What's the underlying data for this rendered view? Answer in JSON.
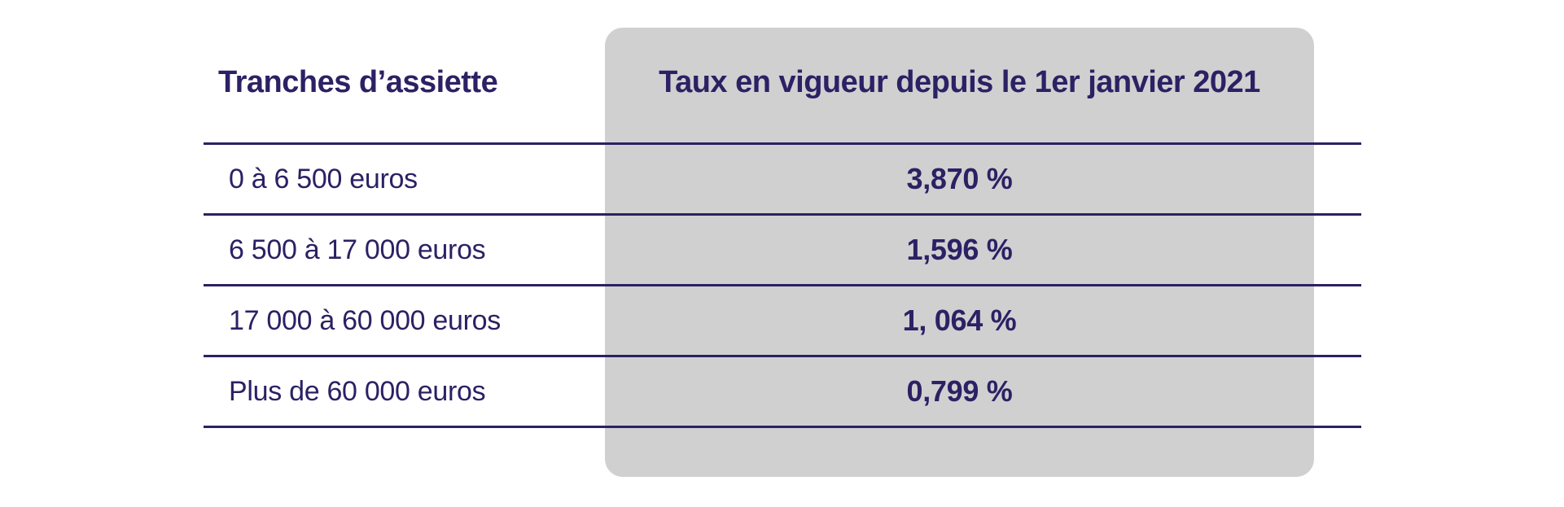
{
  "table": {
    "header": {
      "tranches": "Tranches d’assiette",
      "taux": "Taux en vigueur depuis le 1er janvier 2021"
    },
    "rows": [
      {
        "tranche": "0 à 6 500 euros",
        "taux": "3,870 %"
      },
      {
        "tranche": "6 500 à 17 000 euros",
        "taux": "1,596 %"
      },
      {
        "tranche": "17 000 à 60 000 euros",
        "taux": "1, 064 %"
      },
      {
        "tranche": "Plus de 60 000 euros",
        "taux": "0,799 %"
      }
    ]
  },
  "colors": {
    "text": "#2b2164",
    "line": "#2b2164",
    "panel_bg": "#d0d0d0",
    "page_bg": "#ffffff"
  }
}
